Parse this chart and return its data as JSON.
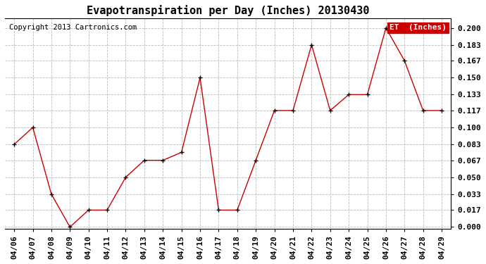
{
  "title": "Evapotranspiration per Day (Inches) 20130430",
  "copyright": "Copyright 2013 Cartronics.com",
  "legend_label": "ET  (Inches)",
  "dates": [
    "04/06",
    "04/07",
    "04/08",
    "04/09",
    "04/10",
    "04/11",
    "04/12",
    "04/13",
    "04/14",
    "04/15",
    "04/16",
    "04/17",
    "04/18",
    "04/19",
    "04/20",
    "04/21",
    "04/22",
    "04/23",
    "04/24",
    "04/25",
    "04/26",
    "04/27",
    "04/28",
    "04/29"
  ],
  "values": [
    0.083,
    0.1,
    0.033,
    0.0,
    0.017,
    0.017,
    0.05,
    0.067,
    0.067,
    0.075,
    0.15,
    0.017,
    0.017,
    0.067,
    0.117,
    0.117,
    0.183,
    0.117,
    0.133,
    0.133,
    0.2,
    0.167,
    0.117,
    0.117
  ],
  "line_color": "#cc0000",
  "marker_color": "#000000",
  "background_color": "#ffffff",
  "grid_color": "#bbbbbb",
  "ylim": [
    -0.002,
    0.21
  ],
  "yticks": [
    0.0,
    0.017,
    0.033,
    0.05,
    0.067,
    0.083,
    0.1,
    0.117,
    0.133,
    0.15,
    0.167,
    0.183,
    0.2
  ],
  "legend_bg": "#cc0000",
  "legend_text_color": "#ffffff",
  "title_fontsize": 11,
  "tick_fontsize": 8,
  "copyright_fontsize": 7.5
}
